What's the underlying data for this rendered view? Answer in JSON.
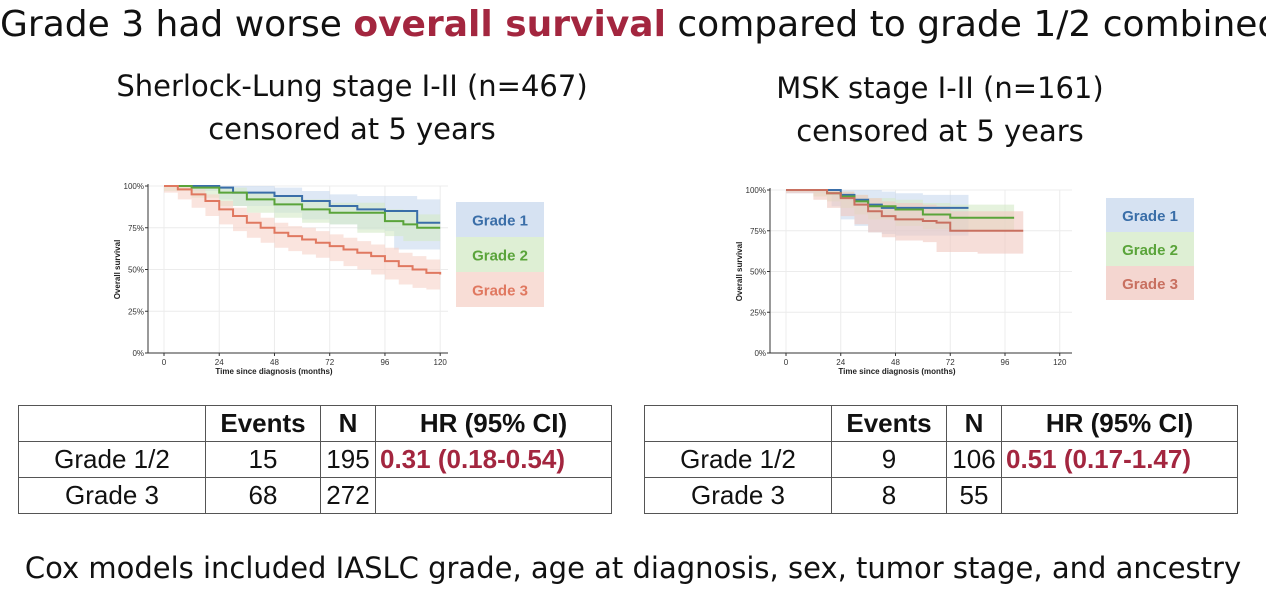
{
  "slide": {
    "title_prefix": "Grade 3 had worse ",
    "title_highlight": "overall survival",
    "title_suffix": " compared to grade 1/2 combined",
    "highlight_color": "#a3263f",
    "footer": "Cox models included IASLC grade, age at diagnosis, sex, tumor stage, and ancestry"
  },
  "panels": [
    {
      "subtitle_line1": "Sherlock-Lung stage I-II (n=467)",
      "subtitle_line2": "censored at 5 years",
      "table": {
        "headers": [
          "",
          "Events",
          "N",
          "HR (95% CI)"
        ],
        "rows": [
          {
            "label": "Grade 1/2",
            "events": "15",
            "n": "195",
            "hr": "0.31 (0.18-0.54)"
          },
          {
            "label": "Grade 3",
            "events": "68",
            "n": "272",
            "hr": ""
          }
        ]
      }
    },
    {
      "subtitle_line1": "MSK stage I-II (n=161)",
      "subtitle_line2": "censored at 5 years",
      "table": {
        "headers": [
          "",
          "Events",
          "N",
          "HR (95% CI)"
        ],
        "rows": [
          {
            "label": "Grade 1/2",
            "events": "9",
            "n": "106",
            "hr": "0.51 (0.17-1.47)"
          },
          {
            "label": "Grade 3",
            "events": "8",
            "n": "55",
            "hr": ""
          }
        ]
      }
    }
  ],
  "chart_data": [
    {
      "type": "line",
      "title": "Sherlock-Lung stage I-II (n=467)",
      "xlabel": "Time since diagnosis (months)",
      "ylabel": "Overall survival",
      "xlim": [
        0,
        126
      ],
      "ylim": [
        0,
        1
      ],
      "x_ticks": [
        0,
        24,
        48,
        72,
        96,
        120
      ],
      "y_ticks": [
        0,
        0.25,
        0.5,
        0.75,
        1
      ],
      "y_tick_labels": [
        "0%",
        "25%",
        "50%",
        "75%",
        "100%"
      ],
      "grid": true,
      "legend_position": "right",
      "series": [
        {
          "name": "Grade 1",
          "color": "#3a6ea8",
          "band_color": "#c8d8ee",
          "x": [
            0,
            12,
            24,
            30,
            48,
            60,
            72,
            84,
            96,
            100,
            110,
            120
          ],
          "y": [
            1.0,
            1.0,
            0.99,
            0.96,
            0.94,
            0.91,
            0.88,
            0.86,
            0.85,
            0.85,
            0.78,
            0.78
          ],
          "lower": [
            1.0,
            1.0,
            0.97,
            0.92,
            0.88,
            0.84,
            0.8,
            0.77,
            0.74,
            0.73,
            0.62,
            0.62
          ],
          "upper": [
            1.0,
            1.0,
            1.0,
            1.0,
            0.99,
            0.97,
            0.95,
            0.94,
            0.94,
            0.94,
            0.92,
            0.92
          ]
        },
        {
          "name": "Grade 2",
          "color": "#5aa43a",
          "band_color": "#d3eac6",
          "x": [
            0,
            12,
            24,
            36,
            48,
            60,
            72,
            84,
            96,
            104,
            110,
            120
          ],
          "y": [
            1.0,
            0.99,
            0.96,
            0.92,
            0.89,
            0.86,
            0.84,
            0.84,
            0.79,
            0.77,
            0.75,
            0.75
          ],
          "lower": [
            1.0,
            0.97,
            0.93,
            0.88,
            0.84,
            0.81,
            0.78,
            0.77,
            0.72,
            0.7,
            0.67,
            0.67
          ],
          "upper": [
            1.0,
            1.0,
            0.99,
            0.96,
            0.94,
            0.92,
            0.9,
            0.9,
            0.86,
            0.85,
            0.83,
            0.83
          ]
        },
        {
          "name": "Grade 3",
          "color": "#e07860",
          "band_color": "#f6d2c8",
          "x": [
            0,
            6,
            12,
            18,
            24,
            30,
            36,
            42,
            48,
            54,
            60,
            66,
            72,
            78,
            84,
            90,
            96,
            102,
            108,
            114,
            120
          ],
          "y": [
            1.0,
            0.98,
            0.95,
            0.91,
            0.86,
            0.82,
            0.78,
            0.75,
            0.72,
            0.7,
            0.68,
            0.66,
            0.64,
            0.62,
            0.6,
            0.58,
            0.55,
            0.52,
            0.5,
            0.48,
            0.47
          ],
          "lower": [
            1.0,
            0.96,
            0.92,
            0.87,
            0.82,
            0.77,
            0.73,
            0.69,
            0.66,
            0.63,
            0.61,
            0.59,
            0.57,
            0.55,
            0.52,
            0.5,
            0.47,
            0.44,
            0.41,
            0.39,
            0.38
          ],
          "upper": [
            1.0,
            1.0,
            0.98,
            0.95,
            0.91,
            0.87,
            0.84,
            0.81,
            0.78,
            0.76,
            0.75,
            0.73,
            0.71,
            0.69,
            0.67,
            0.65,
            0.63,
            0.6,
            0.58,
            0.56,
            0.55
          ]
        }
      ]
    },
    {
      "type": "line",
      "title": "MSK stage I-II (n=161)",
      "xlabel": "Time since diagnosis (months)",
      "ylabel": "Overall survival",
      "xlim": [
        0,
        128
      ],
      "ylim": [
        0,
        1
      ],
      "x_ticks": [
        0,
        24,
        48,
        72,
        96,
        120
      ],
      "y_ticks": [
        0,
        0.25,
        0.5,
        0.75,
        1
      ],
      "y_tick_labels": [
        "0%",
        "25%",
        "50%",
        "75%",
        "100%"
      ],
      "grid": true,
      "legend_position": "right",
      "series": [
        {
          "name": "Grade 1",
          "color": "#3a6ea8",
          "band_color": "#c8d8ee",
          "x": [
            0,
            20,
            24,
            30,
            36,
            42,
            48,
            60,
            72,
            80
          ],
          "y": [
            1.0,
            1.0,
            0.97,
            0.94,
            0.91,
            0.89,
            0.89,
            0.89,
            0.89,
            0.89
          ],
          "lower": [
            1.0,
            0.98,
            0.9,
            0.82,
            0.78,
            0.74,
            0.73,
            0.72,
            0.72,
            0.72
          ],
          "upper": [
            1.0,
            1.0,
            1.0,
            1.0,
            1.0,
            0.99,
            0.98,
            0.97,
            0.97,
            0.97
          ]
        },
        {
          "name": "Grade 2",
          "color": "#5aa43a",
          "band_color": "#d3eac6",
          "x": [
            0,
            12,
            18,
            24,
            30,
            36,
            48,
            60,
            72,
            84,
            96,
            100
          ],
          "y": [
            1.0,
            1.0,
            0.98,
            0.96,
            0.93,
            0.9,
            0.88,
            0.85,
            0.83,
            0.83,
            0.83,
            0.83
          ],
          "lower": [
            1.0,
            0.99,
            0.96,
            0.93,
            0.89,
            0.85,
            0.82,
            0.78,
            0.76,
            0.75,
            0.75,
            0.75
          ],
          "upper": [
            1.0,
            1.0,
            1.0,
            0.99,
            0.97,
            0.95,
            0.94,
            0.92,
            0.91,
            0.91,
            0.91,
            0.91
          ]
        },
        {
          "name": "Grade 3",
          "color": "#c87060",
          "band_color": "#f0c8c0",
          "x": [
            0,
            12,
            18,
            24,
            30,
            36,
            42,
            48,
            60,
            66,
            72,
            84,
            96,
            104
          ],
          "y": [
            1.0,
            1.0,
            0.98,
            0.95,
            0.91,
            0.87,
            0.84,
            0.82,
            0.81,
            0.8,
            0.75,
            0.75,
            0.75,
            0.75
          ],
          "lower": [
            1.0,
            0.98,
            0.94,
            0.89,
            0.84,
            0.79,
            0.74,
            0.71,
            0.69,
            0.68,
            0.62,
            0.62,
            0.61,
            0.61
          ],
          "upper": [
            1.0,
            1.0,
            1.0,
            0.99,
            0.97,
            0.95,
            0.93,
            0.92,
            0.91,
            0.9,
            0.87,
            0.87,
            0.87,
            0.87
          ]
        }
      ]
    }
  ]
}
